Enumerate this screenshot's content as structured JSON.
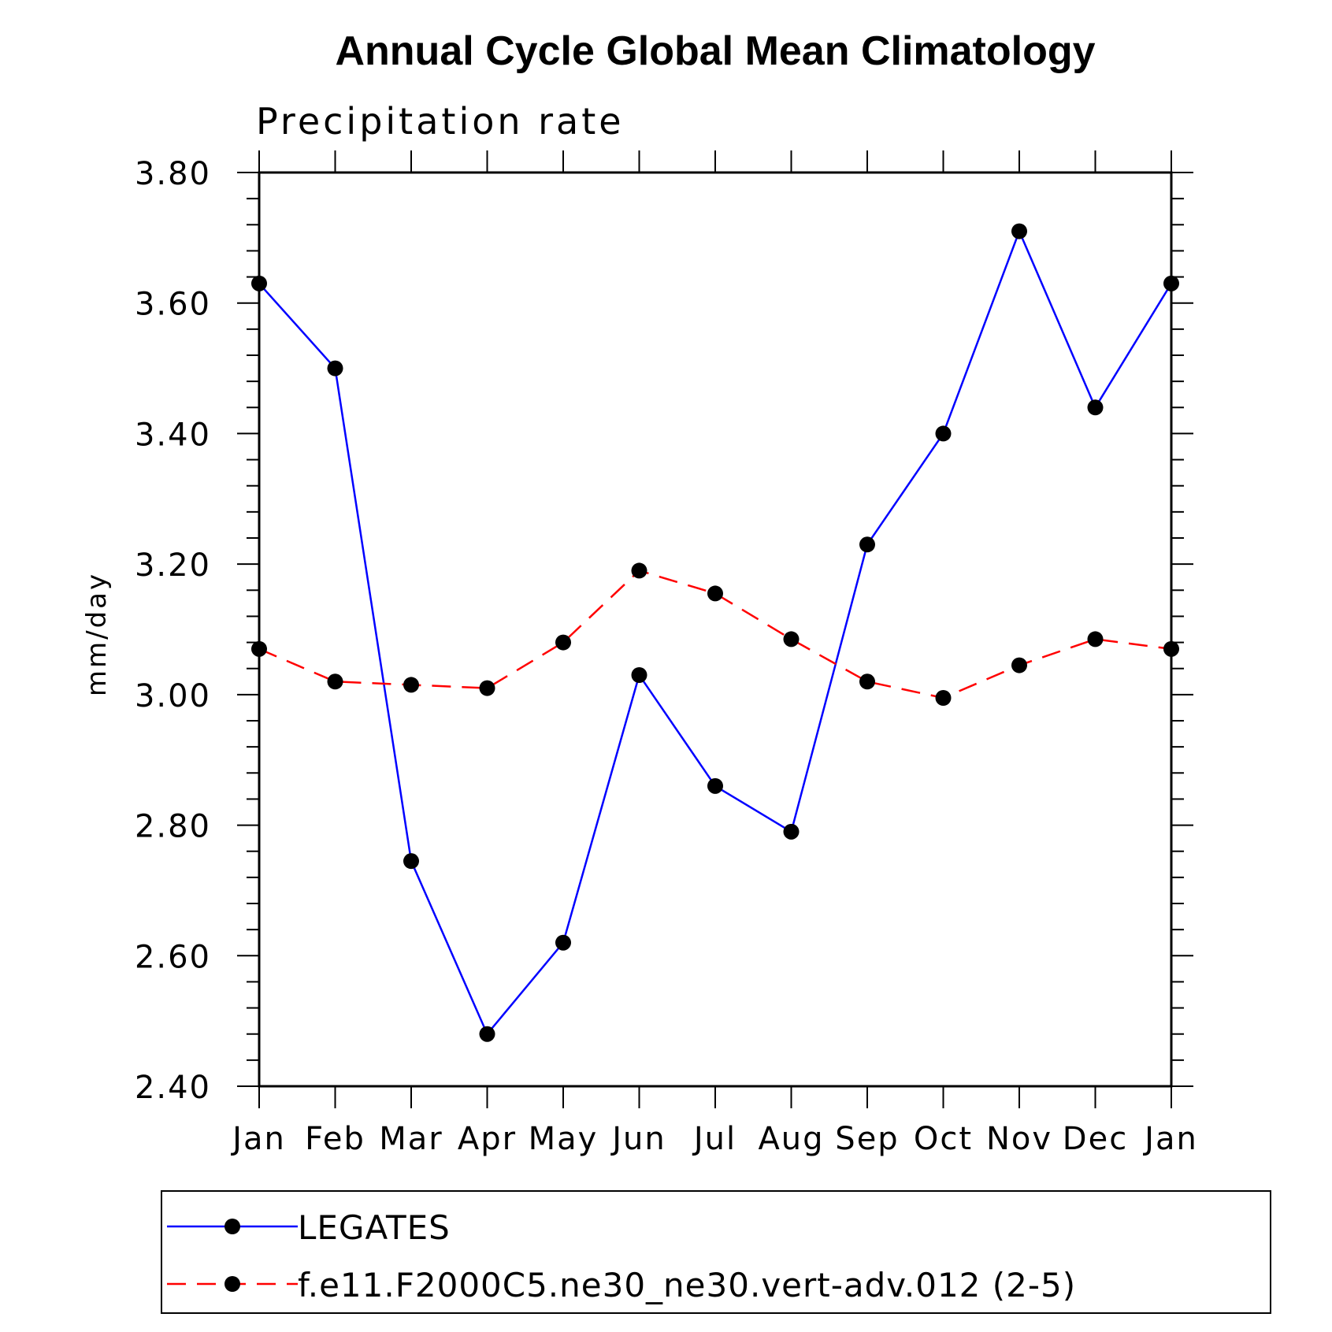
{
  "chart_data": {
    "type": "line",
    "title": "Annual Cycle Global Mean Climatology",
    "subtitle": "Precipitation rate",
    "ylabel": "mm/day",
    "xlabel": "",
    "categories": [
      "Jan",
      "Feb",
      "Mar",
      "Apr",
      "May",
      "Jun",
      "Jul",
      "Aug",
      "Sep",
      "Oct",
      "Nov",
      "Dec",
      "Jan"
    ],
    "ylim": [
      2.4,
      3.8
    ],
    "yticks": [
      "2.40",
      "2.60",
      "2.80",
      "3.00",
      "3.20",
      "3.40",
      "3.60",
      "3.80"
    ],
    "legend_placement": "bottom",
    "series": [
      {
        "name": "LEGATES",
        "color": "#0000ff",
        "dash": "solid",
        "values": [
          3.63,
          3.5,
          2.745,
          2.48,
          2.62,
          3.03,
          2.86,
          2.79,
          3.23,
          3.4,
          3.71,
          3.44,
          3.63
        ]
      },
      {
        "name": "f.e11.F2000C5.ne30_ne30.vert-adv.012 (2-5)",
        "color": "#ff0000",
        "dash": "dashed",
        "values": [
          3.07,
          3.02,
          3.015,
          3.01,
          3.08,
          3.19,
          3.155,
          3.085,
          3.02,
          2.995,
          3.045,
          3.085,
          3.07
        ]
      }
    ]
  }
}
